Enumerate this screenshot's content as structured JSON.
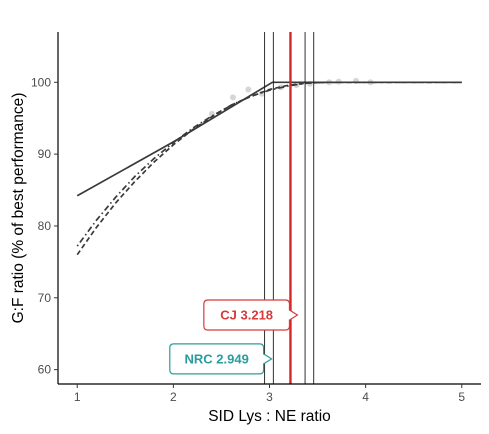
{
  "chart_data": {
    "type": "line",
    "xlabel": "SID Lys : NE ratio",
    "ylabel": "G:F ratio (% of best performance)",
    "xlim": [
      0.8,
      5.2
    ],
    "ylim": [
      58,
      107
    ],
    "x_ticks": [
      1,
      2,
      3,
      4,
      5
    ],
    "y_ticks": [
      60,
      70,
      80,
      90,
      100
    ],
    "grid": false,
    "series": [
      {
        "style": "solid",
        "color": "#3a3a3a",
        "points": [
          [
            1.0,
            84.2
          ],
          [
            2.0,
            91.7
          ],
          [
            3.03,
            100.0
          ],
          [
            5.0,
            100.0
          ]
        ]
      },
      {
        "style": "dashed",
        "color": "#3a3a3a",
        "points": [
          [
            1.0,
            76.0
          ],
          [
            1.2,
            79.8
          ],
          [
            1.4,
            83.2
          ],
          [
            1.6,
            86.2
          ],
          [
            1.8,
            88.9
          ],
          [
            2.0,
            91.3
          ],
          [
            2.2,
            93.4
          ],
          [
            2.4,
            95.2
          ],
          [
            2.6,
            96.8
          ],
          [
            2.8,
            98.0
          ],
          [
            3.0,
            99.0
          ],
          [
            3.2,
            99.6
          ],
          [
            3.4,
            99.9
          ],
          [
            3.6,
            100.0
          ],
          [
            5.0,
            100.0
          ]
        ]
      },
      {
        "style": "dotdash",
        "color": "#3a3a3a",
        "points": [
          [
            1.0,
            77.2
          ],
          [
            1.2,
            80.8
          ],
          [
            1.4,
            84.0
          ],
          [
            1.6,
            86.9
          ],
          [
            1.8,
            89.4
          ],
          [
            2.0,
            91.6
          ],
          [
            2.2,
            93.6
          ],
          [
            2.4,
            95.3
          ],
          [
            2.6,
            96.8
          ],
          [
            2.8,
            98.0
          ],
          [
            3.0,
            98.9
          ],
          [
            3.2,
            99.5
          ],
          [
            3.4,
            99.9
          ],
          [
            3.6,
            100.0
          ],
          [
            5.0,
            100.0
          ]
        ]
      }
    ],
    "observed_points": {
      "color": "#cccccc",
      "points": [
        [
          2.4,
          95.6
        ],
        [
          2.62,
          97.9
        ],
        [
          2.78,
          99.0
        ],
        [
          2.92,
          98.4
        ],
        [
          3.12,
          99.3
        ],
        [
          3.28,
          99.6
        ],
        [
          3.42,
          99.8
        ],
        [
          3.62,
          100.0
        ],
        [
          3.72,
          100.1
        ],
        [
          3.9,
          100.2
        ],
        [
          4.05,
          100.0
        ]
      ]
    },
    "reference_lines": [
      {
        "x": 2.949,
        "color": "#1a1a1a"
      },
      {
        "x": 3.04,
        "color": "#1a1a1a"
      },
      {
        "x": 3.37,
        "color": "#1a1a1a"
      },
      {
        "x": 3.46,
        "color": "#1a1a1a"
      },
      {
        "x": 3.218,
        "color": "#d62728"
      }
    ],
    "callouts": [
      {
        "text": "CJ 3.218",
        "x": 3.218,
        "y": 67.6,
        "side": "left",
        "color": "#d63a3a"
      },
      {
        "text": "NRC 2.949",
        "x": 2.949,
        "y": 61.5,
        "side": "left",
        "color": "#2a9d9d"
      }
    ]
  }
}
